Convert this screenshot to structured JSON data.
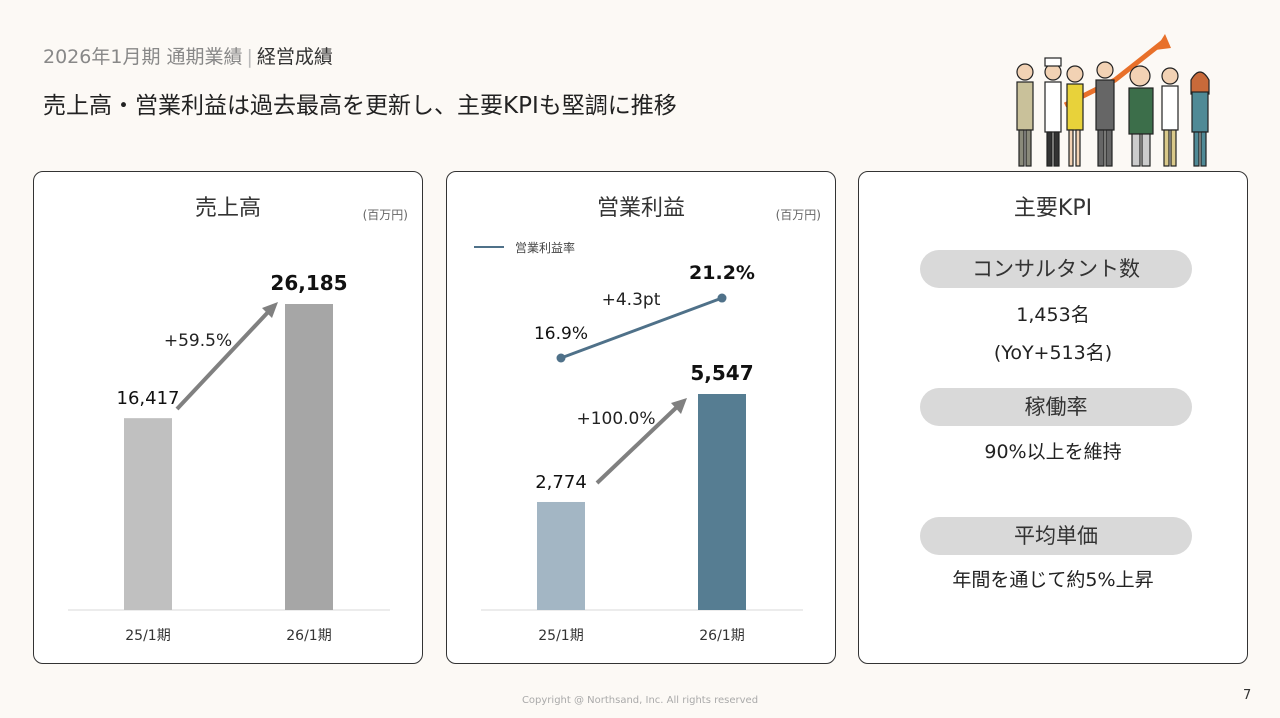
{
  "header": {
    "breadcrumb_period": "2026年1月期 通期業績",
    "breadcrumb_separator": "|",
    "breadcrumb_current": "経営成績",
    "headline": "売上高・営業利益は過去最高を更新し、主要KPIも堅調に推移"
  },
  "chart_data": [
    {
      "type": "bar",
      "title": "売上高",
      "unit": "(百万円)",
      "categories": [
        "25/1期",
        "26/1期"
      ],
      "values": [
        16417,
        26185
      ],
      "value_labels": [
        "16,417",
        "26,185"
      ],
      "growth_label": "+59.5%",
      "colors": [
        "#c0c0c0",
        "#a6a6a6"
      ],
      "grid": false
    },
    {
      "type": "bar",
      "title": "営業利益",
      "unit": "(百万円)",
      "categories": [
        "25/1期",
        "26/1期"
      ],
      "values": [
        2774,
        5547
      ],
      "value_labels": [
        "2,774",
        "5,547"
      ],
      "growth_label": "+100.0%",
      "colors": [
        "#a3b6c4",
        "#567d92"
      ],
      "grid": false,
      "line_series": {
        "name": "営業利益率",
        "values": [
          16.9,
          21.2
        ],
        "value_labels": [
          "16.9%",
          "21.2%"
        ],
        "change_label": "+4.3pt",
        "color": "#4f7189"
      }
    }
  ],
  "kpi": {
    "title": "主要KPI",
    "items": [
      {
        "label": "コンサルタント数",
        "value": "1,453名",
        "sub": "(YoY+513名)"
      },
      {
        "label": "稼働率",
        "value": "90%以上を維持"
      },
      {
        "label": "平均単価",
        "value": "年間を通じて約5%上昇"
      }
    ]
  },
  "colors": {
    "accent_arrow": "#e8702a",
    "growth_arrow": "#808080"
  },
  "footer": {
    "copyright": "Copyright @ Northsand, Inc. All rights reserved",
    "page": "7"
  }
}
